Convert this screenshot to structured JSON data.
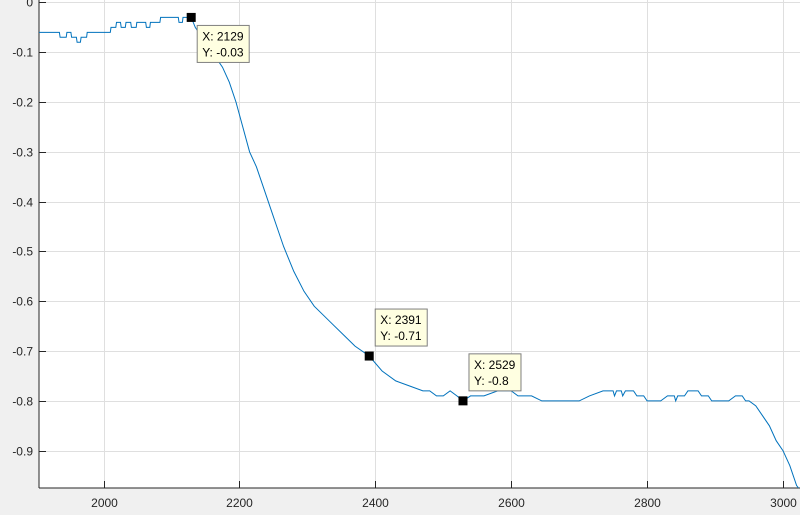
{
  "chart_data": {
    "type": "line",
    "title": "",
    "xlabel": "",
    "ylabel": "",
    "xlim": [
      1905,
      3025
    ],
    "ylim": [
      -0.975,
      0.005
    ],
    "grid": true,
    "line_color": "#0072bd",
    "x_ticks": [
      2000,
      2200,
      2400,
      2600,
      2800,
      3000
    ],
    "x_tick_labels": [
      "2000",
      "2200",
      "2400",
      "2600",
      "2800",
      "3000"
    ],
    "y_ticks": [
      0,
      -0.1,
      -0.2,
      -0.3,
      -0.4,
      -0.5,
      -0.6,
      -0.7,
      -0.8,
      -0.9
    ],
    "y_tick_labels": [
      "0",
      "-0.1",
      "-0.2",
      "-0.3",
      "-0.4",
      "-0.5",
      "-0.6",
      "-0.7",
      "-0.8",
      "-0.9"
    ],
    "series": [
      {
        "points": [
          [
            1905,
            -0.06
          ],
          [
            1935,
            -0.06
          ],
          [
            1936,
            -0.07
          ],
          [
            1945,
            -0.07
          ],
          [
            1946,
            -0.06
          ],
          [
            1952,
            -0.06
          ],
          [
            1953,
            -0.07
          ],
          [
            1960,
            -0.07
          ],
          [
            1961,
            -0.08
          ],
          [
            1966,
            -0.08
          ],
          [
            1967,
            -0.07
          ],
          [
            1975,
            -0.07
          ],
          [
            1976,
            -0.06
          ],
          [
            2010,
            -0.06
          ],
          [
            2011,
            -0.05
          ],
          [
            2018,
            -0.05
          ],
          [
            2019,
            -0.04
          ],
          [
            2025,
            -0.04
          ],
          [
            2026,
            -0.05
          ],
          [
            2032,
            -0.05
          ],
          [
            2033,
            -0.04
          ],
          [
            2040,
            -0.04
          ],
          [
            2041,
            -0.05
          ],
          [
            2048,
            -0.05
          ],
          [
            2049,
            -0.04
          ],
          [
            2062,
            -0.04
          ],
          [
            2063,
            -0.05
          ],
          [
            2068,
            -0.05
          ],
          [
            2069,
            -0.04
          ],
          [
            2083,
            -0.04
          ],
          [
            2084,
            -0.03
          ],
          [
            2110,
            -0.03
          ],
          [
            2111,
            -0.04
          ],
          [
            2116,
            -0.04
          ],
          [
            2117,
            -0.03
          ],
          [
            2129,
            -0.03
          ],
          [
            2135,
            -0.05
          ],
          [
            2145,
            -0.07
          ],
          [
            2160,
            -0.1
          ],
          [
            2175,
            -0.13
          ],
          [
            2185,
            -0.16
          ],
          [
            2195,
            -0.2
          ],
          [
            2205,
            -0.25
          ],
          [
            2215,
            -0.3
          ],
          [
            2225,
            -0.33
          ],
          [
            2235,
            -0.37
          ],
          [
            2245,
            -0.41
          ],
          [
            2255,
            -0.45
          ],
          [
            2265,
            -0.49
          ],
          [
            2280,
            -0.54
          ],
          [
            2295,
            -0.58
          ],
          [
            2310,
            -0.61
          ],
          [
            2325,
            -0.63
          ],
          [
            2340,
            -0.65
          ],
          [
            2355,
            -0.67
          ],
          [
            2370,
            -0.69
          ],
          [
            2391,
            -0.71
          ],
          [
            2410,
            -0.74
          ],
          [
            2430,
            -0.76
          ],
          [
            2450,
            -0.77
          ],
          [
            2470,
            -0.78
          ],
          [
            2480,
            -0.78
          ],
          [
            2490,
            -0.79
          ],
          [
            2500,
            -0.79
          ],
          [
            2510,
            -0.78
          ],
          [
            2520,
            -0.79
          ],
          [
            2529,
            -0.8
          ],
          [
            2540,
            -0.79
          ],
          [
            2560,
            -0.79
          ],
          [
            2580,
            -0.78
          ],
          [
            2600,
            -0.78
          ],
          [
            2610,
            -0.79
          ],
          [
            2630,
            -0.79
          ],
          [
            2645,
            -0.8
          ],
          [
            2660,
            -0.8
          ],
          [
            2700,
            -0.8
          ],
          [
            2715,
            -0.79
          ],
          [
            2735,
            -0.78
          ],
          [
            2750,
            -0.78
          ],
          [
            2752,
            -0.79
          ],
          [
            2755,
            -0.78
          ],
          [
            2762,
            -0.78
          ],
          [
            2764,
            -0.79
          ],
          [
            2768,
            -0.78
          ],
          [
            2780,
            -0.78
          ],
          [
            2785,
            -0.79
          ],
          [
            2795,
            -0.79
          ],
          [
            2800,
            -0.8
          ],
          [
            2820,
            -0.8
          ],
          [
            2830,
            -0.79
          ],
          [
            2840,
            -0.79
          ],
          [
            2842,
            -0.8
          ],
          [
            2845,
            -0.79
          ],
          [
            2855,
            -0.79
          ],
          [
            2860,
            -0.78
          ],
          [
            2875,
            -0.78
          ],
          [
            2880,
            -0.79
          ],
          [
            2890,
            -0.79
          ],
          [
            2895,
            -0.8
          ],
          [
            2920,
            -0.8
          ],
          [
            2930,
            -0.79
          ],
          [
            2940,
            -0.79
          ],
          [
            2945,
            -0.8
          ],
          [
            2950,
            -0.8
          ],
          [
            2960,
            -0.81
          ],
          [
            2970,
            -0.83
          ],
          [
            2980,
            -0.85
          ],
          [
            2990,
            -0.88
          ],
          [
            3000,
            -0.9
          ],
          [
            3010,
            -0.93
          ],
          [
            3020,
            -0.97
          ],
          [
            3023,
            -0.975
          ]
        ]
      }
    ],
    "datatips": [
      {
        "x": 2129,
        "y": -0.03,
        "x_text": "X: 2129",
        "y_text": "Y: -0.03"
      },
      {
        "x": 2391,
        "y": -0.71,
        "x_text": "X: 2391",
        "y_text": "Y: -0.71"
      },
      {
        "x": 2529,
        "y": -0.8,
        "x_text": "X: 2529",
        "y_text": "Y: -0.8"
      }
    ]
  }
}
